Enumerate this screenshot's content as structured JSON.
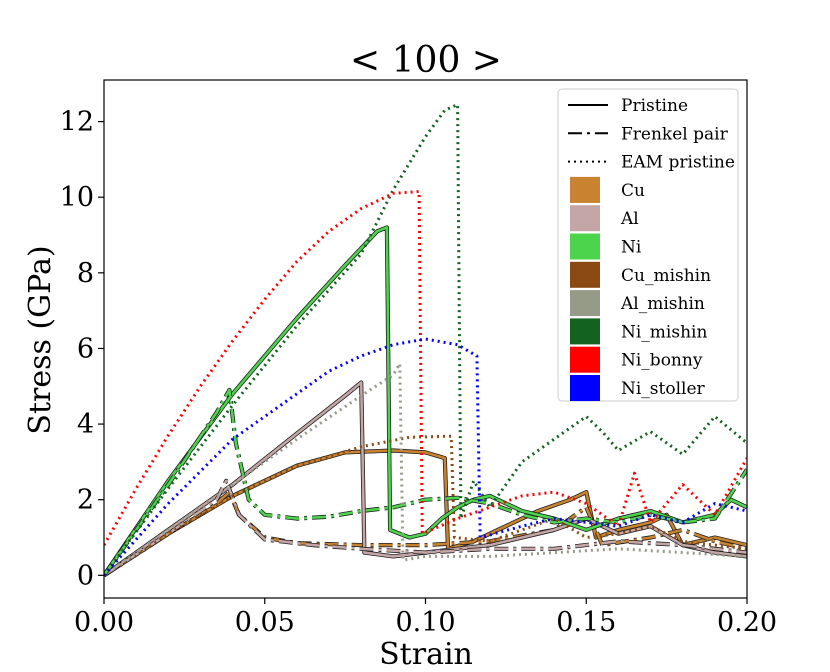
{
  "chart_data": {
    "type": "line",
    "title": "< 100 >",
    "xlabel": "Strain",
    "ylabel": "Stress (GPa)",
    "xlim": [
      0.0,
      0.2
    ],
    "ylim": [
      -0.6,
      13.1
    ],
    "xticks": [
      "0.00",
      "0.05",
      "0.10",
      "0.15",
      "0.20"
    ],
    "xtick_values": [
      0.0,
      0.05,
      0.1,
      0.15,
      0.2
    ],
    "yticks": [
      "0",
      "2",
      "4",
      "6",
      "8",
      "10",
      "12"
    ],
    "ytick_values": [
      0,
      2,
      4,
      6,
      8,
      10,
      12
    ],
    "legend_position": "top-right",
    "legend_styles": [
      {
        "label": "Pristine",
        "dash": "solid"
      },
      {
        "label": "Frenkel pair",
        "dash": "dashdot"
      },
      {
        "label": "EAM pristine",
        "dash": "dotted"
      }
    ],
    "legend_colors": [
      {
        "label": "Cu",
        "color": "#c88330"
      },
      {
        "label": "Al",
        "color": "#c4a6a6"
      },
      {
        "label": "Ni",
        "color": "#4cd44c"
      },
      {
        "label": "Cu_mishin",
        "color": "#8b4a14"
      },
      {
        "label": "Al_mishin",
        "color": "#969b88"
      },
      {
        "label": "Ni_mishin",
        "color": "#13621f"
      },
      {
        "label": "Ni_bonny",
        "color": "#ff0000"
      },
      {
        "label": "Ni_stoller",
        "color": "#0000ff"
      }
    ],
    "series": [
      {
        "name": "Cu (Pristine)",
        "style": "solid",
        "color": "#c88330",
        "points": [
          [
            0,
            0
          ],
          [
            0.02,
            1.1
          ],
          [
            0.04,
            2.1
          ],
          [
            0.06,
            2.9
          ],
          [
            0.075,
            3.25
          ],
          [
            0.09,
            3.3
          ],
          [
            0.1,
            3.25
          ],
          [
            0.106,
            3.1
          ],
          [
            0.107,
            0.7
          ],
          [
            0.115,
            0.9
          ],
          [
            0.125,
            1.3
          ],
          [
            0.135,
            1.7
          ],
          [
            0.145,
            2.0
          ],
          [
            0.15,
            2.2
          ],
          [
            0.153,
            1.0
          ],
          [
            0.16,
            1.2
          ],
          [
            0.17,
            1.4
          ],
          [
            0.175,
            1.6
          ],
          [
            0.18,
            0.8
          ],
          [
            0.19,
            1.0
          ],
          [
            0.2,
            0.8
          ]
        ]
      },
      {
        "name": "Cu (Frenkel pair)",
        "style": "dashdot",
        "color": "#c88330",
        "points": [
          [
            0,
            0
          ],
          [
            0.02,
            1.1
          ],
          [
            0.035,
            1.9
          ],
          [
            0.039,
            2.2
          ],
          [
            0.042,
            1.6
          ],
          [
            0.05,
            1.0
          ],
          [
            0.06,
            0.85
          ],
          [
            0.08,
            0.8
          ],
          [
            0.1,
            0.8
          ],
          [
            0.12,
            0.9
          ],
          [
            0.14,
            1.2
          ],
          [
            0.15,
            1.8
          ],
          [
            0.155,
            0.8
          ],
          [
            0.17,
            1.0
          ],
          [
            0.18,
            1.2
          ],
          [
            0.19,
            0.9
          ],
          [
            0.2,
            0.7
          ]
        ]
      },
      {
        "name": "Al (Pristine)",
        "style": "solid",
        "color": "#c4a6a6",
        "points": [
          [
            0,
            0
          ],
          [
            0.02,
            1.2
          ],
          [
            0.04,
            2.4
          ],
          [
            0.06,
            3.75
          ],
          [
            0.075,
            4.75
          ],
          [
            0.08,
            5.1
          ],
          [
            0.081,
            0.6
          ],
          [
            0.09,
            0.5
          ],
          [
            0.1,
            0.6
          ],
          [
            0.12,
            0.8
          ],
          [
            0.14,
            1.2
          ],
          [
            0.15,
            1.5
          ],
          [
            0.16,
            1.1
          ],
          [
            0.17,
            1.3
          ],
          [
            0.18,
            0.8
          ],
          [
            0.19,
            0.6
          ],
          [
            0.2,
            0.5
          ]
        ]
      },
      {
        "name": "Al (Frenkel pair)",
        "style": "dashdot",
        "color": "#c4a6a6",
        "points": [
          [
            0,
            0
          ],
          [
            0.02,
            1.1
          ],
          [
            0.035,
            2.0
          ],
          [
            0.038,
            2.5
          ],
          [
            0.042,
            1.6
          ],
          [
            0.05,
            0.95
          ],
          [
            0.065,
            0.8
          ],
          [
            0.08,
            0.7
          ],
          [
            0.1,
            0.6
          ],
          [
            0.12,
            0.7
          ],
          [
            0.14,
            0.7
          ],
          [
            0.16,
            0.9
          ],
          [
            0.18,
            0.8
          ],
          [
            0.2,
            0.6
          ]
        ]
      },
      {
        "name": "Ni (Pristine)",
        "style": "solid",
        "color": "#4cd44c",
        "points": [
          [
            0,
            0
          ],
          [
            0.02,
            2.5
          ],
          [
            0.04,
            4.8
          ],
          [
            0.06,
            6.8
          ],
          [
            0.075,
            8.2
          ],
          [
            0.085,
            9.1
          ],
          [
            0.088,
            9.2
          ],
          [
            0.089,
            1.2
          ],
          [
            0.095,
            1.0
          ],
          [
            0.1,
            1.1
          ],
          [
            0.105,
            1.5
          ],
          [
            0.11,
            1.8
          ],
          [
            0.115,
            2.0
          ],
          [
            0.12,
            2.1
          ],
          [
            0.13,
            1.7
          ],
          [
            0.14,
            1.5
          ],
          [
            0.15,
            1.2
          ],
          [
            0.16,
            1.5
          ],
          [
            0.17,
            1.7
          ],
          [
            0.18,
            1.4
          ],
          [
            0.19,
            1.6
          ],
          [
            0.195,
            2.0
          ],
          [
            0.2,
            1.8
          ]
        ]
      },
      {
        "name": "Ni (Frenkel pair)",
        "style": "dashdot",
        "color": "#4cd44c",
        "points": [
          [
            0,
            0
          ],
          [
            0.02,
            2.4
          ],
          [
            0.035,
            4.3
          ],
          [
            0.039,
            4.9
          ],
          [
            0.041,
            3.5
          ],
          [
            0.045,
            2.0
          ],
          [
            0.05,
            1.6
          ],
          [
            0.06,
            1.5
          ],
          [
            0.07,
            1.55
          ],
          [
            0.08,
            1.7
          ],
          [
            0.09,
            1.8
          ],
          [
            0.1,
            2.0
          ],
          [
            0.11,
            2.05
          ],
          [
            0.12,
            1.9
          ],
          [
            0.13,
            1.6
          ],
          [
            0.14,
            1.4
          ],
          [
            0.15,
            1.5
          ],
          [
            0.16,
            1.4
          ],
          [
            0.17,
            1.6
          ],
          [
            0.18,
            1.4
          ],
          [
            0.19,
            1.5
          ],
          [
            0.2,
            2.8
          ]
        ]
      },
      {
        "name": "Cu_mishin (EAM pristine)",
        "style": "dotted",
        "color": "#8b4a14",
        "points": [
          [
            0,
            0
          ],
          [
            0.02,
            1.1
          ],
          [
            0.04,
            2.1
          ],
          [
            0.06,
            2.9
          ],
          [
            0.08,
            3.4
          ],
          [
            0.095,
            3.65
          ],
          [
            0.108,
            3.68
          ],
          [
            0.109,
            1.0
          ],
          [
            0.12,
            0.9
          ],
          [
            0.13,
            1.2
          ],
          [
            0.14,
            1.5
          ],
          [
            0.15,
            1.0
          ],
          [
            0.16,
            1.1
          ],
          [
            0.17,
            1.3
          ],
          [
            0.18,
            0.9
          ],
          [
            0.19,
            0.8
          ],
          [
            0.2,
            0.7
          ]
        ]
      },
      {
        "name": "Al_mishin (EAM pristine)",
        "style": "dotted",
        "color": "#969b88",
        "points": [
          [
            0,
            0
          ],
          [
            0.02,
            1.2
          ],
          [
            0.04,
            2.4
          ],
          [
            0.06,
            3.6
          ],
          [
            0.08,
            4.75
          ],
          [
            0.09,
            5.3
          ],
          [
            0.092,
            5.6
          ],
          [
            0.093,
            0.4
          ],
          [
            0.1,
            0.5
          ],
          [
            0.12,
            0.5
          ],
          [
            0.14,
            0.6
          ],
          [
            0.16,
            0.7
          ],
          [
            0.18,
            0.6
          ],
          [
            0.2,
            0.5
          ]
        ]
      },
      {
        "name": "Ni_mishin (EAM pristine)",
        "style": "dotted",
        "color": "#13621f",
        "points": [
          [
            0,
            0
          ],
          [
            0.02,
            2.3
          ],
          [
            0.04,
            4.5
          ],
          [
            0.06,
            6.6
          ],
          [
            0.08,
            8.5
          ],
          [
            0.09,
            10.2
          ],
          [
            0.1,
            11.6
          ],
          [
            0.106,
            12.3
          ],
          [
            0.11,
            12.45
          ],
          [
            0.111,
            1.5
          ],
          [
            0.115,
            2.5
          ],
          [
            0.12,
            1.8
          ],
          [
            0.13,
            3.0
          ],
          [
            0.14,
            3.6
          ],
          [
            0.15,
            4.2
          ],
          [
            0.155,
            3.8
          ],
          [
            0.16,
            3.3
          ],
          [
            0.17,
            3.8
          ],
          [
            0.18,
            3.2
          ],
          [
            0.19,
            4.2
          ],
          [
            0.2,
            3.5
          ]
        ]
      },
      {
        "name": "Ni_bonny (EAM pristine)",
        "style": "dotted",
        "color": "#ff0000",
        "points": [
          [
            0,
            0.8
          ],
          [
            0.01,
            2.3
          ],
          [
            0.02,
            3.7
          ],
          [
            0.03,
            5.0
          ],
          [
            0.04,
            6.2
          ],
          [
            0.05,
            7.3
          ],
          [
            0.06,
            8.3
          ],
          [
            0.07,
            9.1
          ],
          [
            0.08,
            9.7
          ],
          [
            0.09,
            10.1
          ],
          [
            0.098,
            10.15
          ],
          [
            0.099,
            1.1
          ],
          [
            0.11,
            1.5
          ],
          [
            0.12,
            1.8
          ],
          [
            0.13,
            2.1
          ],
          [
            0.14,
            2.2
          ],
          [
            0.15,
            1.9
          ],
          [
            0.16,
            1.3
          ],
          [
            0.165,
            2.7
          ],
          [
            0.17,
            1.4
          ],
          [
            0.18,
            2.4
          ],
          [
            0.19,
            1.6
          ],
          [
            0.2,
            3.1
          ]
        ]
      },
      {
        "name": "Ni_stoller (EAM pristine)",
        "style": "dotted",
        "color": "#0000ff",
        "points": [
          [
            0,
            0
          ],
          [
            0.02,
            1.9
          ],
          [
            0.04,
            3.6
          ],
          [
            0.06,
            4.8
          ],
          [
            0.07,
            5.4
          ],
          [
            0.08,
            5.8
          ],
          [
            0.09,
            6.1
          ],
          [
            0.1,
            6.25
          ],
          [
            0.11,
            6.1
          ],
          [
            0.116,
            5.8
          ],
          [
            0.117,
            1.0
          ],
          [
            0.13,
            1.3
          ],
          [
            0.14,
            1.5
          ],
          [
            0.15,
            1.4
          ],
          [
            0.16,
            1.3
          ],
          [
            0.17,
            1.6
          ],
          [
            0.18,
            1.4
          ],
          [
            0.19,
            1.9
          ],
          [
            0.2,
            1.7
          ]
        ]
      }
    ]
  }
}
